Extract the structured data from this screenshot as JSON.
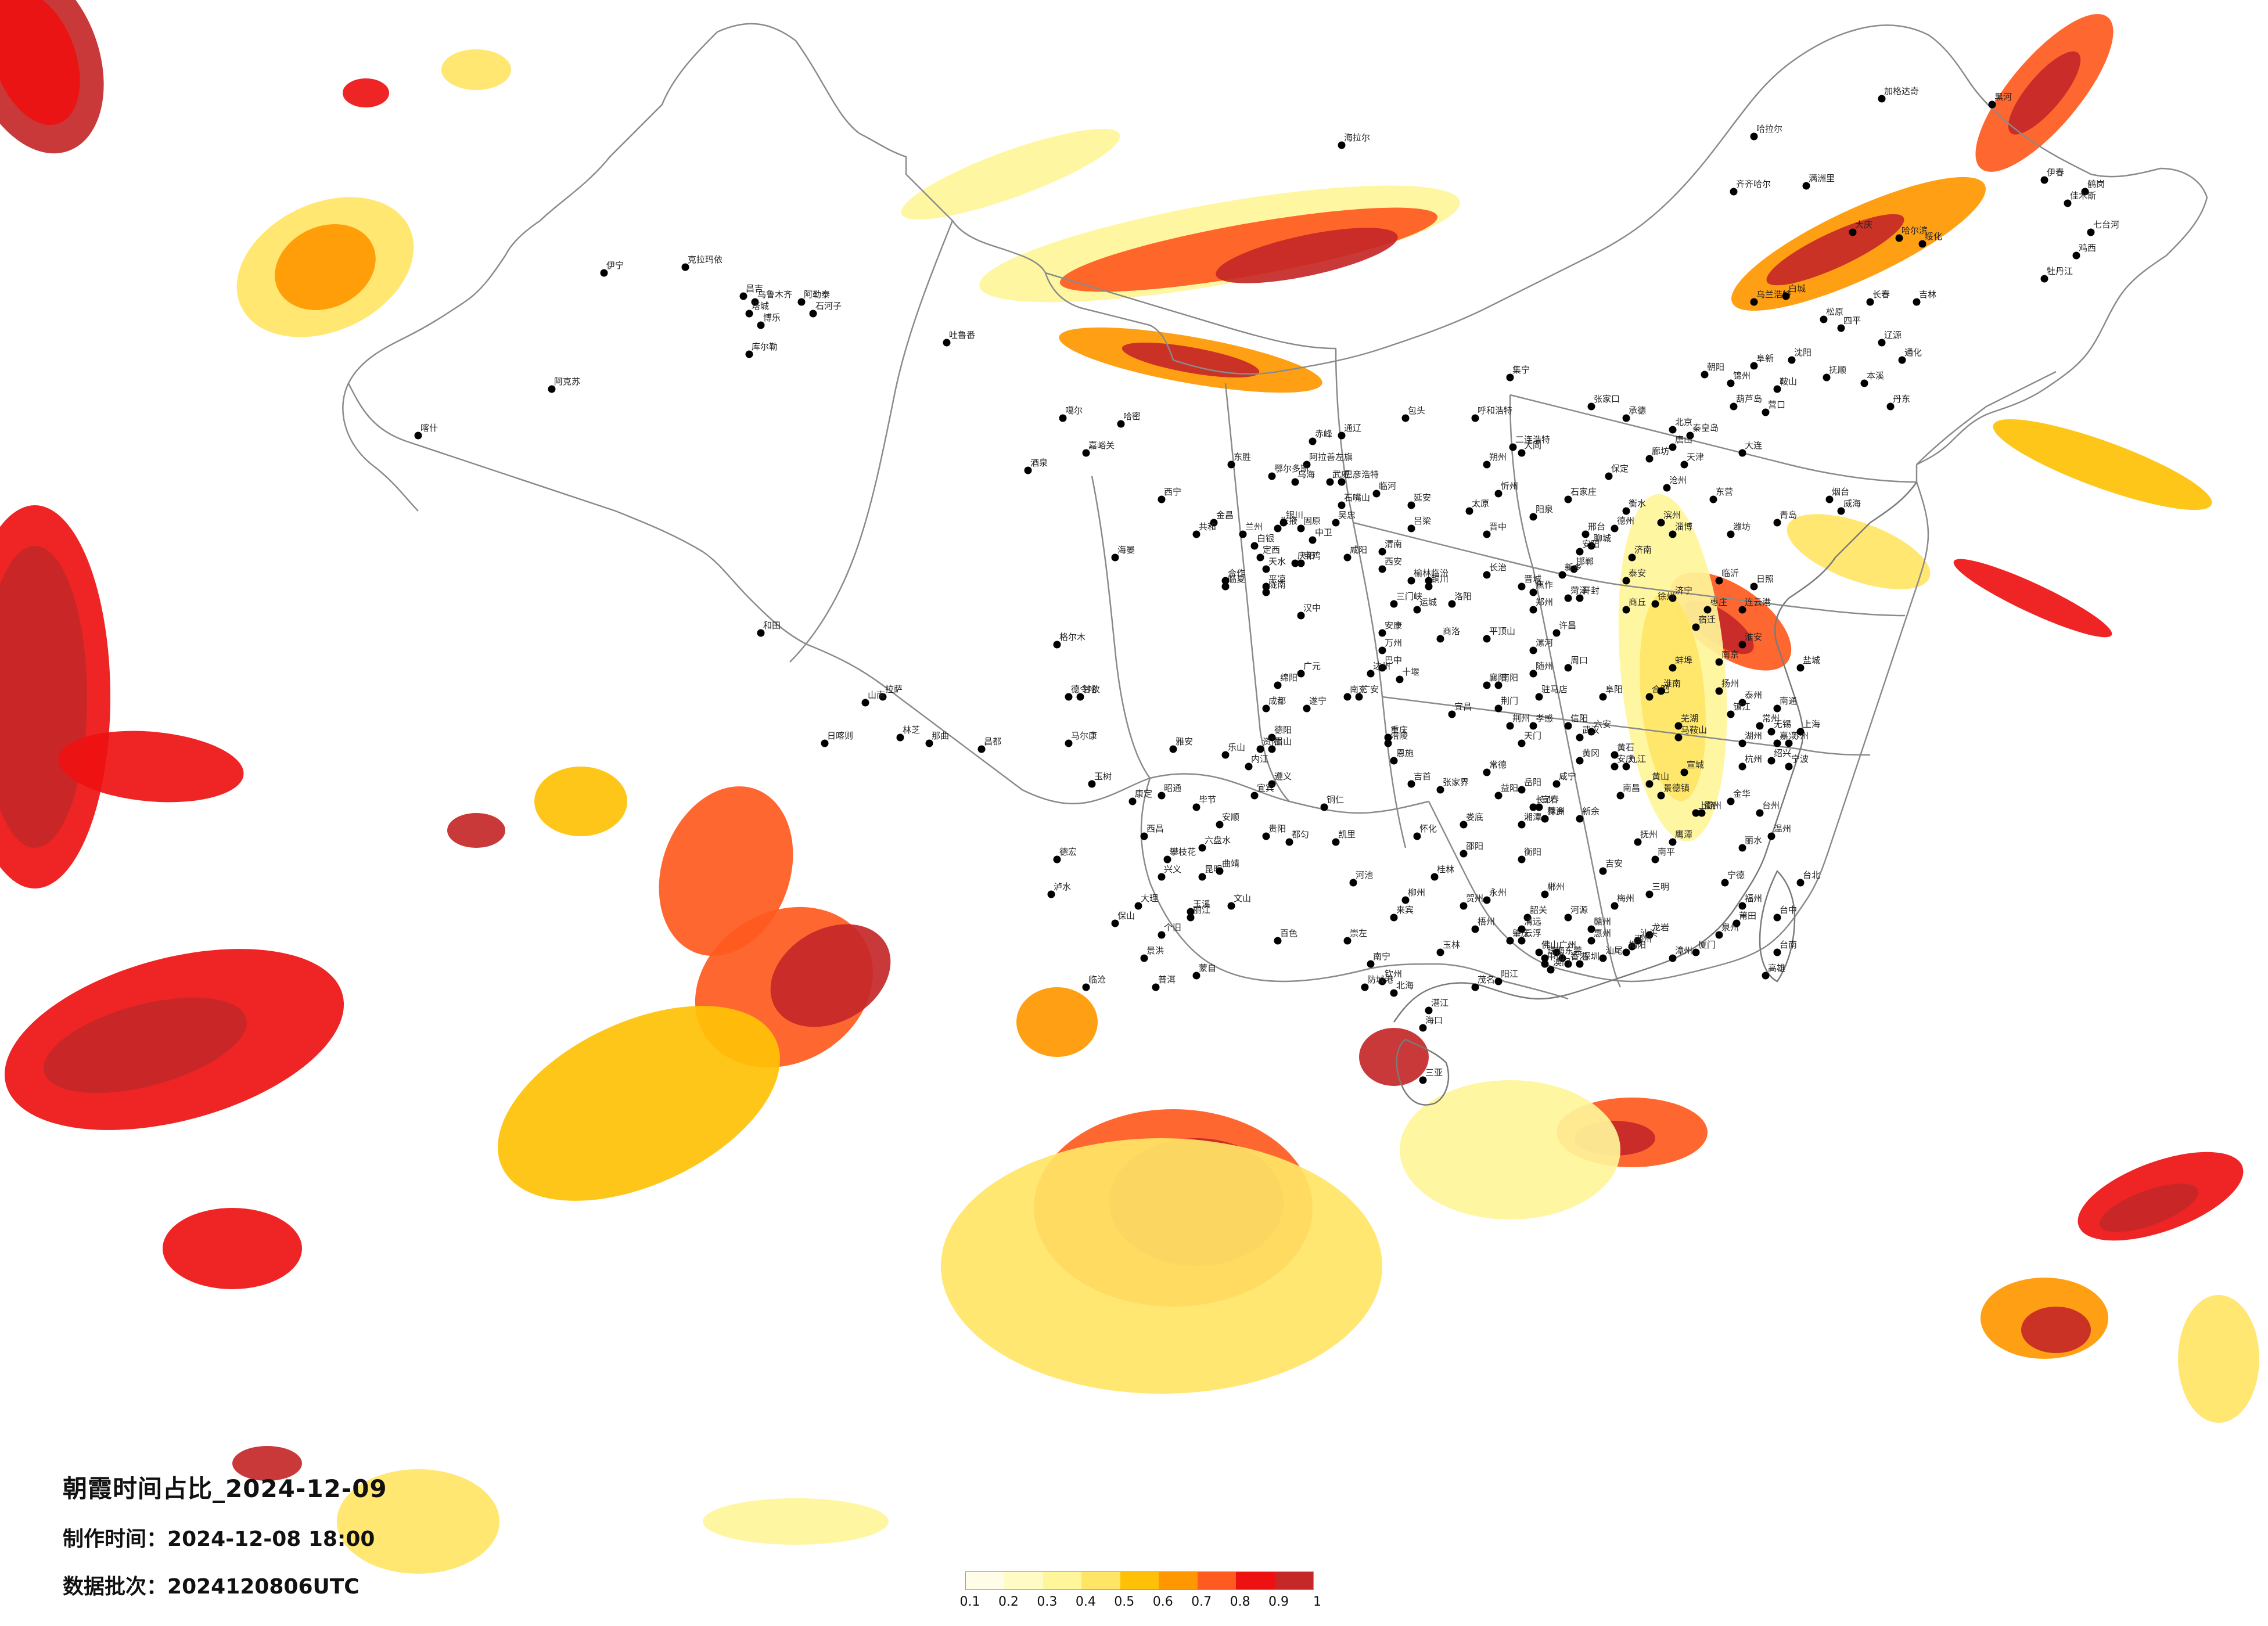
{
  "title": "朝霞时间占比_2024-12-09",
  "production_time_label": "制作时间：",
  "production_time": "2024-12-08 18:00",
  "batch_label": "数据批次：",
  "batch": "2024120806UTC",
  "legend": {
    "colors": [
      "#fffde8",
      "#fffbc4",
      "#fff59a",
      "#ffe566",
      "#ffc107",
      "#ff9800",
      "#ff5a1f",
      "#ee1111",
      "#c62828"
    ],
    "ticks": [
      "0.1",
      "0.2",
      "0.3",
      "0.4",
      "0.5",
      "0.6",
      "0.7",
      "0.8",
      "0.9",
      "1"
    ]
  },
  "cities": [
    "哈拉尔",
    "加格达奇",
    "黑河",
    "齐齐哈尔",
    "伊春",
    "鹤岗",
    "佳木斯",
    "七台河",
    "鸡西",
    "牡丹江",
    "哈尔滨",
    "大庆",
    "绥化",
    "乌兰浩特",
    "白城",
    "松原",
    "长春",
    "吉林",
    "四平",
    "通化",
    "辽源",
    "沈阳",
    "抚顺",
    "本溪",
    "丹东",
    "鞍山",
    "营口",
    "大连",
    "锦州",
    "阜新",
    "朝阳",
    "葫芦岛",
    "二连浩特",
    "呼和浩特",
    "包头",
    "集宁",
    "张家口",
    "北京",
    "天津",
    "承德",
    "秦皇岛",
    "唐山",
    "廊坊",
    "保定",
    "石家庄",
    "沧州",
    "衡水",
    "邢台",
    "邯郸",
    "太原",
    "大同",
    "朔州",
    "忻州",
    "阳泉",
    "晋中",
    "长治",
    "晋城",
    "临汾",
    "运城",
    "吕梁",
    "济南",
    "青岛",
    "烟台",
    "威海",
    "潍坊",
    "淄博",
    "东营",
    "滨州",
    "德州",
    "聊城",
    "泰安",
    "济宁",
    "菏泽",
    "枣庄",
    "临沂",
    "日照",
    "郑州",
    "开封",
    "洛阳",
    "新乡",
    "安阳",
    "焦作",
    "许昌",
    "平顶山",
    "漯河",
    "周口",
    "驻马店",
    "南阳",
    "信阳",
    "商丘",
    "三门峡",
    "南京",
    "徐州",
    "连云港",
    "宿迁",
    "淮安",
    "盐城",
    "扬州",
    "泰州",
    "南通",
    "镇江",
    "常州",
    "无锡",
    "苏州",
    "上海",
    "合肥",
    "蚌埠",
    "淮南",
    "阜阳",
    "六安",
    "安庆",
    "芜湖",
    "马鞍山",
    "黄山",
    "宣城",
    "杭州",
    "宁波",
    "嘉兴",
    "湖州",
    "绍兴",
    "金华",
    "衢州",
    "台州",
    "温州",
    "丽水",
    "福州",
    "厦门",
    "泉州",
    "漳州",
    "莆田",
    "宁德",
    "南平",
    "三明",
    "龙岩",
    "台北",
    "台中",
    "台南",
    "高雄",
    "南昌",
    "九江",
    "景德镇",
    "上饶",
    "鹰潭",
    "抚州",
    "宜春",
    "吉安",
    "赣州",
    "萍乡",
    "新余",
    "武汉",
    "黄石",
    "十堰",
    "宜昌",
    "襄阳",
    "荆州",
    "荆门",
    "孝感",
    "黄冈",
    "咸宁",
    "恩施",
    "随州",
    "天门",
    "长沙",
    "株洲",
    "湘潭",
    "衡阳",
    "邵阳",
    "岳阳",
    "常德",
    "张家界",
    "益阳",
    "郴州",
    "永州",
    "怀化",
    "娄底",
    "吉首",
    "广州",
    "深圳",
    "珠海",
    "汕头",
    "佛山",
    "韶关",
    "湛江",
    "茂名",
    "肇庆",
    "惠州",
    "梅州",
    "汕尾",
    "河源",
    "阳江",
    "清远",
    "东莞",
    "中山",
    "潮州",
    "揭阳",
    "云浮",
    "海口",
    "三亚",
    "香港",
    "澳门",
    "南宁",
    "柳州",
    "桂林",
    "梧州",
    "北海",
    "钦州",
    "玉林",
    "百色",
    "河池",
    "来宾",
    "贺州",
    "崇左",
    "防城港",
    "贵阳",
    "遵义",
    "安顺",
    "六盘水",
    "毕节",
    "铜仁",
    "凯里",
    "都匀",
    "兴义",
    "昆明",
    "曲靖",
    "玉溪",
    "保山",
    "昭通",
    "丽江",
    "普洱",
    "临沧",
    "大理",
    "个旧",
    "文山",
    "蒙自",
    "景洪",
    "泸水",
    "德宏",
    "成都",
    "绵阳",
    "德阳",
    "广元",
    "遂宁",
    "内江",
    "乐山",
    "南充",
    "宜宾",
    "广安",
    "达州",
    "巴中",
    "雅安",
    "眉山",
    "资阳",
    "攀枝花",
    "西昌",
    "康定",
    "马尔康",
    "甘孜",
    "重庆",
    "万州",
    "涪陵",
    "西安",
    "宝鸡",
    "咸阳",
    "渭南",
    "延安",
    "汉中",
    "榆林",
    "安康",
    "商洛",
    "铜川",
    "兰州",
    "天水",
    "武威",
    "张掖",
    "酒泉",
    "嘉峪关",
    "金昌",
    "白银",
    "平凉",
    "庆阳",
    "定西",
    "陇南",
    "临夏",
    "合作",
    "西宁",
    "格尔木",
    "德令哈",
    "玉树",
    "共和",
    "海晏",
    "银川",
    "石嘴山",
    "吴忠",
    "固原",
    "中卫",
    "乌鲁木齐",
    "克拉玛依",
    "吐鲁番",
    "哈密",
    "昌吉",
    "库尔勒",
    "阿克苏",
    "喀什",
    "和田",
    "伊宁",
    "塔城",
    "阿勒泰",
    "博乐",
    "石河子",
    "拉萨",
    "日喀则",
    "林芝",
    "昌都",
    "那曲",
    "山南",
    "噶尔",
    "阿拉善左旗",
    "巴彦浩特",
    "乌海",
    "鄂尔多斯",
    "临河",
    "东胜",
    "赤峰",
    "通辽",
    "海拉尔",
    "满洲里"
  ]
}
